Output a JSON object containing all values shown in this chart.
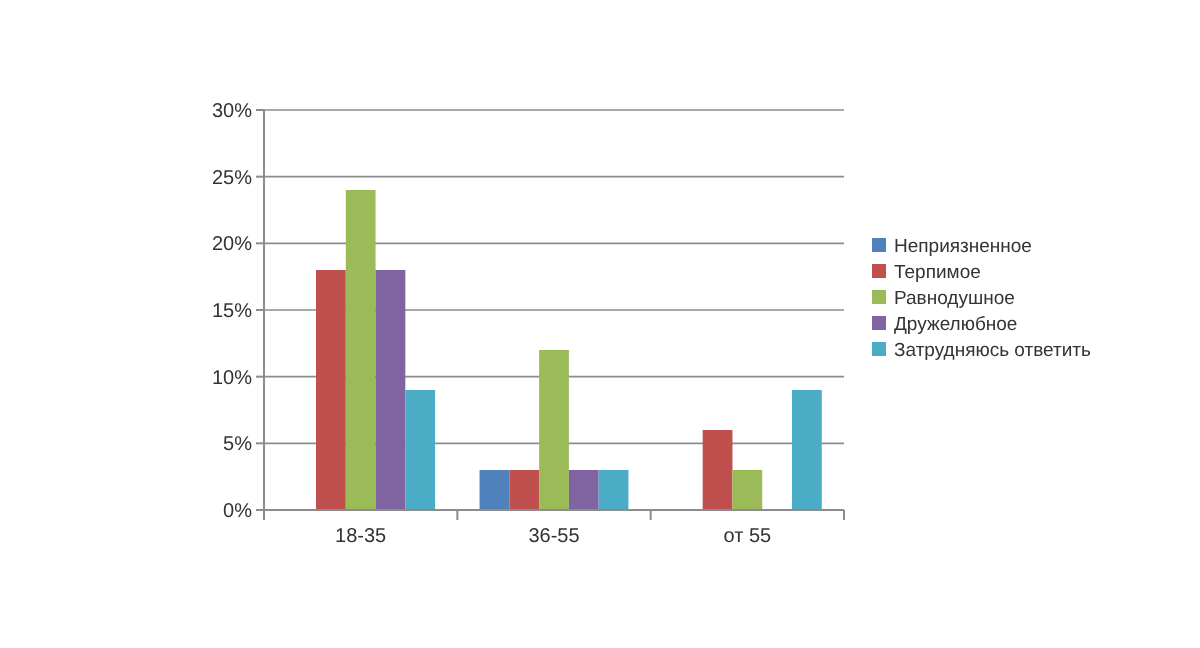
{
  "chart_data": {
    "type": "bar",
    "categories": [
      "18-35",
      "36-55",
      "от 55"
    ],
    "series": [
      {
        "name": "Неприязненное",
        "color": "#4f81bd",
        "values": [
          0,
          3,
          0
        ]
      },
      {
        "name": "Терпимое",
        "color": "#c0504d",
        "values": [
          18,
          3,
          6
        ]
      },
      {
        "name": "Равнодушное",
        "color": "#9bbb59",
        "values": [
          24,
          12,
          3
        ]
      },
      {
        "name": "Дружелюбное",
        "color": "#8064a2",
        "values": [
          18,
          3,
          0
        ]
      },
      {
        "name": "Затрудняюсь ответить",
        "color": "#4bacc6",
        "values": [
          9,
          3,
          9
        ]
      }
    ],
    "ylim": [
      0,
      30
    ],
    "yticks": [
      {
        "value": 0,
        "label": "0%"
      },
      {
        "value": 5,
        "label": "5%"
      },
      {
        "value": 10,
        "label": "10%"
      },
      {
        "value": 15,
        "label": "15%"
      },
      {
        "value": 20,
        "label": "20%"
      },
      {
        "value": 25,
        "label": "25%"
      },
      {
        "value": 30,
        "label": "30%"
      }
    ],
    "grid": "y",
    "legend": "right"
  }
}
